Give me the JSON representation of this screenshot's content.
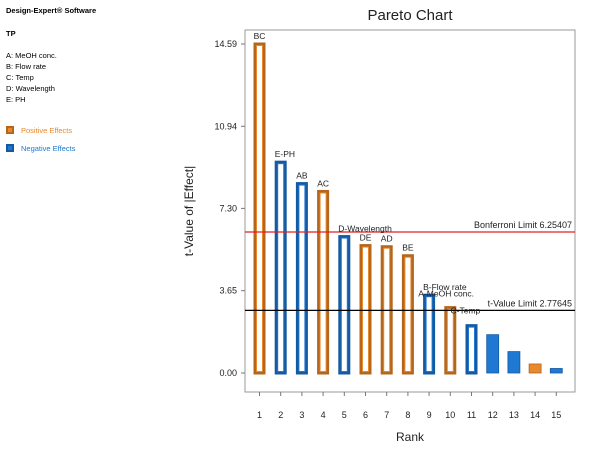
{
  "software": "Design-Expert® Software",
  "response": "TP",
  "factors": [
    "A: MeOH conc.",
    "B: Flow rate",
    "C: Temp",
    "D: Wavelength",
    "E: PH"
  ],
  "legend": [
    {
      "label": "Positive Effects",
      "color": "#e8892d"
    },
    {
      "label": "Negative Effects",
      "color": "#1f78d1"
    }
  ],
  "chart_data": {
    "type": "bar",
    "title": "Pareto Chart",
    "xlabel": "Rank",
    "ylabel": "t-Value of |Effect|",
    "ylim": [
      0,
      14.59
    ],
    "yticks": [
      "0.00",
      "3.65",
      "7.30",
      "10.94",
      "14.59"
    ],
    "categories": [
      1,
      2,
      3,
      4,
      5,
      6,
      7,
      8,
      9,
      10,
      11,
      12,
      13,
      14,
      15
    ],
    "values": [
      14.59,
      9.35,
      8.4,
      8.05,
      6.05,
      5.65,
      5.6,
      5.2,
      3.45,
      2.9,
      2.1,
      1.7,
      0.95,
      0.4,
      0.2
    ],
    "effects": [
      "positive",
      "negative",
      "negative",
      "positive",
      "negative",
      "positive",
      "positive",
      "positive",
      "negative",
      "positive",
      "negative",
      "negative",
      "negative",
      "positive",
      "negative"
    ],
    "labels": [
      "BC",
      "E-PH",
      "AB",
      "AC",
      "D-Wavelength",
      "DE",
      "AD",
      "BE",
      "B-Flow rate",
      "A-MeOH conc.",
      "C-Temp",
      "",
      "",
      "",
      ""
    ],
    "reference_lines": [
      {
        "label": "Bonferroni Limit 6.25407",
        "value": 6.25407,
        "color": "#e02020"
      },
      {
        "label": "t-Value Limit 2.77645",
        "value": 2.77645,
        "color": "#000000"
      }
    ],
    "grid": false
  }
}
